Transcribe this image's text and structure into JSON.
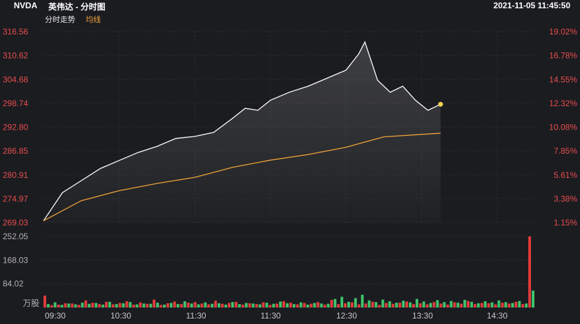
{
  "header": {
    "ticker": "NVDA",
    "name": "英伟达 - 分时图",
    "datetime": "2021-11-05 11:45:50"
  },
  "legend": {
    "trend_label": "分时走势",
    "avg_label": "均线"
  },
  "colors": {
    "background": "#1b1c20",
    "price_line": "#ffffff",
    "avg_line": "#f0a238",
    "axis_red": "#e84d4d",
    "up_bar": "#e23b3b",
    "down_bar": "#3fc46a"
  },
  "chart_data": [
    {
      "type": "line",
      "title": "",
      "x_ticks": [
        "09:30",
        "10:30",
        "11:30",
        "11:30",
        "12:30",
        "13:30",
        "14:30"
      ],
      "y_ticks_left": [
        "316.56",
        "310.62",
        "304.68",
        "298.74",
        "292.80",
        "286.85",
        "280.91",
        "274.97",
        "269.03"
      ],
      "y_ticks_right": [
        "19.02%",
        "16.78%",
        "14.55%",
        "12.32%",
        "10.08%",
        "7.85%",
        "5.61%",
        "3.38%",
        "1.15%"
      ],
      "ylim": [
        269.03,
        316.56
      ],
      "grid": true,
      "series": [
        {
          "name": "分时走势",
          "time": [
            "09:30",
            "09:45",
            "10:00",
            "10:15",
            "10:30",
            "10:45",
            "11:00",
            "11:15",
            "11:30",
            "11:45",
            "12:00",
            "12:10",
            "12:20",
            "12:30",
            "12:45",
            "13:00",
            "13:15",
            "13:30",
            "13:40",
            "13:45",
            "13:55",
            "14:05",
            "14:15",
            "14:25",
            "14:35",
            "14:45"
          ],
          "values": [
            269.5,
            276.5,
            279.5,
            282.5,
            284.5,
            286.5,
            288.0,
            290.0,
            290.5,
            291.5,
            295.0,
            297.5,
            297.0,
            299.5,
            301.5,
            303.0,
            305.0,
            307.0,
            311.0,
            314.0,
            304.5,
            301.5,
            303.0,
            299.5,
            297.0,
            298.5
          ]
        },
        {
          "name": "均线",
          "time": [
            "09:30",
            "10:00",
            "10:30",
            "11:00",
            "11:30",
            "12:00",
            "12:30",
            "13:00",
            "13:30",
            "14:00",
            "14:45"
          ],
          "values": [
            269.5,
            274.5,
            277.0,
            278.8,
            280.3,
            282.8,
            284.6,
            286.0,
            287.8,
            290.4,
            291.3
          ]
        }
      ]
    },
    {
      "type": "bar",
      "title": "",
      "ylabel": "万股",
      "y_ticks": [
        "252.05",
        "168.03",
        "84.02"
      ],
      "ylim": [
        0,
        252.05
      ],
      "up_values": [
        42,
        8,
        10,
        15,
        14,
        9,
        25,
        17,
        12,
        20,
        11,
        16,
        22,
        10,
        18,
        13,
        28,
        9,
        15,
        21,
        12,
        17,
        19,
        14,
        11,
        24,
        13,
        16,
        20,
        10,
        15,
        12,
        18,
        9,
        14,
        22,
        17,
        11,
        16,
        13,
        19,
        10,
        27,
        12,
        15,
        18,
        11,
        14,
        20,
        9,
        16,
        13,
        17,
        21,
        12,
        15,
        11,
        19,
        14,
        10,
        18,
        13,
        23,
        12,
        16,
        15,
        11,
        17,
        14,
        20,
        12,
        252
      ],
      "down_values": [
        12,
        18,
        9,
        14,
        11,
        17,
        13,
        16,
        10,
        20,
        12,
        15,
        19,
        11,
        14,
        13,
        17,
        10,
        16,
        12,
        22,
        14,
        11,
        18,
        13,
        15,
        10,
        19,
        12,
        16,
        14,
        11,
        17,
        13,
        21,
        15,
        12,
        18,
        10,
        16,
        14,
        13,
        30,
        38,
        20,
        33,
        45,
        25,
        19,
        28,
        22,
        17,
        24,
        18,
        30,
        21,
        16,
        26,
        19,
        23,
        17,
        27,
        20,
        15,
        22,
        18,
        25,
        19,
        16,
        23,
        14,
        60
      ]
    }
  ]
}
